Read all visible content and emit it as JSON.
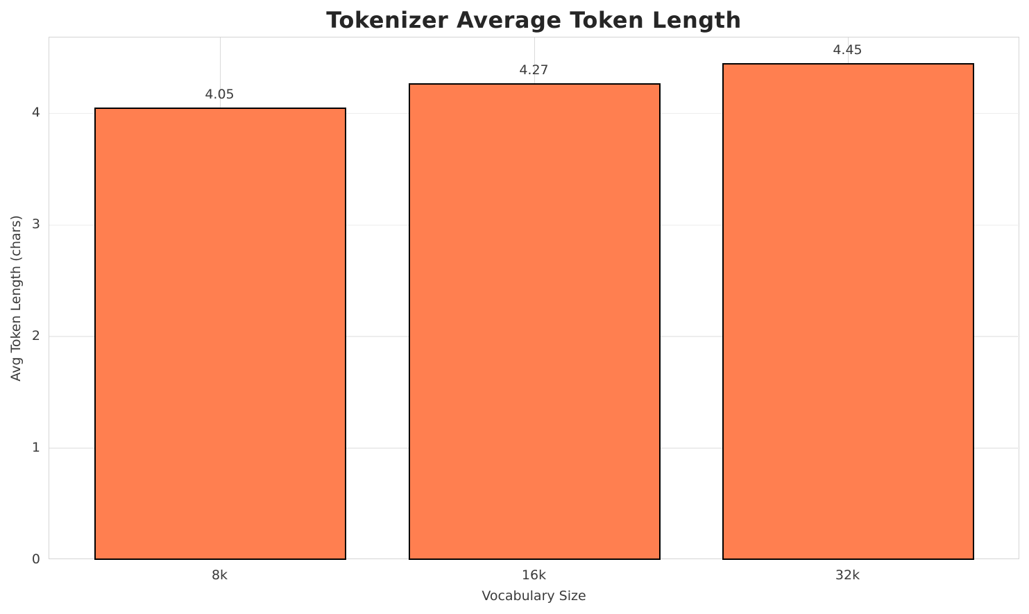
{
  "chart_data": {
    "type": "bar",
    "title": "Tokenizer Average Token Length",
    "xlabel": "Vocabulary Size",
    "ylabel": "Avg Token Length (chars)",
    "categories": [
      "8k",
      "16k",
      "32k"
    ],
    "values": [
      4.05,
      4.27,
      4.45
    ],
    "value_labels": [
      "4.05",
      "4.27",
      "4.45"
    ],
    "yticks": [
      0,
      1,
      2,
      3,
      4
    ],
    "ylim": [
      0,
      4.68
    ],
    "grid": "both",
    "legend": "none",
    "bar_color": "#ff7f50",
    "bar_edge_color": "#000000",
    "grid_color_horizontal": "#ededed",
    "grid_color_vertical": "#d9d9d9",
    "spine_color": "#d4d4d4",
    "text_color": "#3a3a3a",
    "title_color": "#262626",
    "background": "#ffffff"
  }
}
